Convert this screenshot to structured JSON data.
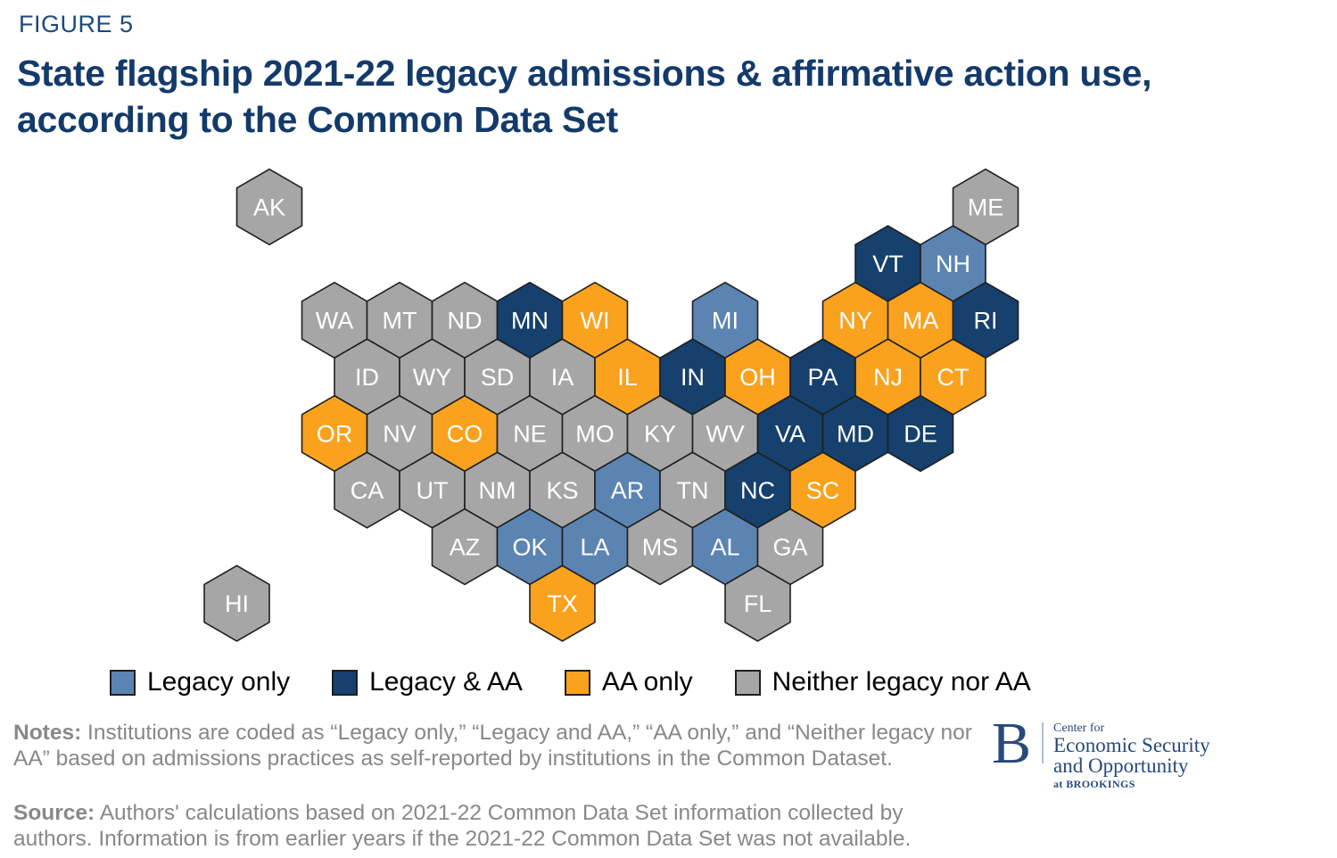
{
  "figure_label": "FIGURE 5",
  "title_line1": "State flagship 2021-22 legacy admissions & affirmative action use,",
  "title_line2": "according to the Common Data Set",
  "notes": {
    "label": "Notes:",
    "text": "Institutions are coded as “Legacy only,” “Legacy and AA,” “AA only,” and “Neither legacy nor AA” based on admissions practices as self-reported by institutions in the Common Dataset."
  },
  "source": {
    "label": "Source:",
    "text": "Authors' calculations based on 2021-22 Common Data Set information collected by authors. Information is from earlier years if the 2021-22 Common Data Set was not available."
  },
  "logo": {
    "b_mark": "B",
    "line1": "Center for",
    "line2": "Economic Security",
    "line3": "and Opportunity",
    "line4": "at BROOKINGS"
  },
  "colors": {
    "figure_label": "#1B4A7E",
    "title": "#133A6A",
    "body_text": "#888888",
    "logo": "#27497B",
    "hex_border": "#1f1f1f",
    "state_label": "#FFFFFF"
  },
  "chart_data": {
    "type": "hexmap",
    "title": "State flagship 2021-22 legacy admissions & affirmative action use, according to the Common Data Set",
    "legend_position": "bottom",
    "categories": [
      {
        "id": "legacy_only",
        "label": "Legacy only",
        "color": "#5B84B2"
      },
      {
        "id": "legacy_aa",
        "label": "Legacy & AA",
        "color": "#16406D"
      },
      {
        "id": "aa_only",
        "label": "AA only",
        "color": "#FAA21E"
      },
      {
        "id": "neither",
        "label": "Neither legacy nor AA",
        "color": "#A6A6A6"
      }
    ],
    "states": [
      {
        "code": "AK",
        "category": "neither",
        "row": 0,
        "col": 0
      },
      {
        "code": "ME",
        "category": "neither",
        "row": 0,
        "col": 11
      },
      {
        "code": "VT",
        "category": "legacy_aa",
        "row": 1,
        "col": 10
      },
      {
        "code": "NH",
        "category": "legacy_only",
        "row": 1,
        "col": 11
      },
      {
        "code": "WA",
        "category": "neither",
        "row": 2,
        "col": 1
      },
      {
        "code": "MT",
        "category": "neither",
        "row": 2,
        "col": 2
      },
      {
        "code": "ND",
        "category": "neither",
        "row": 2,
        "col": 3
      },
      {
        "code": "MN",
        "category": "legacy_aa",
        "row": 2,
        "col": 4
      },
      {
        "code": "WI",
        "category": "aa_only",
        "row": 2,
        "col": 5
      },
      {
        "code": "MI",
        "category": "legacy_only",
        "row": 2,
        "col": 7
      },
      {
        "code": "NY",
        "category": "aa_only",
        "row": 2,
        "col": 9
      },
      {
        "code": "MA",
        "category": "aa_only",
        "row": 2,
        "col": 10
      },
      {
        "code": "RI",
        "category": "legacy_aa",
        "row": 2,
        "col": 11
      },
      {
        "code": "ID",
        "category": "neither",
        "row": 3,
        "col": 2
      },
      {
        "code": "WY",
        "category": "neither",
        "row": 3,
        "col": 3
      },
      {
        "code": "SD",
        "category": "neither",
        "row": 3,
        "col": 4
      },
      {
        "code": "IA",
        "category": "neither",
        "row": 3,
        "col": 5
      },
      {
        "code": "IL",
        "category": "aa_only",
        "row": 3,
        "col": 6
      },
      {
        "code": "IN",
        "category": "legacy_aa",
        "row": 3,
        "col": 7
      },
      {
        "code": "OH",
        "category": "aa_only",
        "row": 3,
        "col": 8
      },
      {
        "code": "PA",
        "category": "legacy_aa",
        "row": 3,
        "col": 9
      },
      {
        "code": "NJ",
        "category": "aa_only",
        "row": 3,
        "col": 10
      },
      {
        "code": "CT",
        "category": "aa_only",
        "row": 3,
        "col": 11
      },
      {
        "code": "OR",
        "category": "aa_only",
        "row": 4,
        "col": 1
      },
      {
        "code": "NV",
        "category": "neither",
        "row": 4,
        "col": 2
      },
      {
        "code": "CO",
        "category": "aa_only",
        "row": 4,
        "col": 3
      },
      {
        "code": "NE",
        "category": "neither",
        "row": 4,
        "col": 4
      },
      {
        "code": "MO",
        "category": "neither",
        "row": 4,
        "col": 5
      },
      {
        "code": "KY",
        "category": "neither",
        "row": 4,
        "col": 6
      },
      {
        "code": "WV",
        "category": "neither",
        "row": 4,
        "col": 7
      },
      {
        "code": "VA",
        "category": "legacy_aa",
        "row": 4,
        "col": 8
      },
      {
        "code": "MD",
        "category": "legacy_aa",
        "row": 4,
        "col": 9
      },
      {
        "code": "DE",
        "category": "legacy_aa",
        "row": 4,
        "col": 10
      },
      {
        "code": "CA",
        "category": "neither",
        "row": 5,
        "col": 2
      },
      {
        "code": "UT",
        "category": "neither",
        "row": 5,
        "col": 3
      },
      {
        "code": "NM",
        "category": "neither",
        "row": 5,
        "col": 4
      },
      {
        "code": "KS",
        "category": "neither",
        "row": 5,
        "col": 5
      },
      {
        "code": "AR",
        "category": "legacy_only",
        "row": 5,
        "col": 6
      },
      {
        "code": "TN",
        "category": "neither",
        "row": 5,
        "col": 7
      },
      {
        "code": "NC",
        "category": "legacy_aa",
        "row": 5,
        "col": 8
      },
      {
        "code": "SC",
        "category": "aa_only",
        "row": 5,
        "col": 9
      },
      {
        "code": "AZ",
        "category": "neither",
        "row": 6,
        "col": 3
      },
      {
        "code": "OK",
        "category": "legacy_only",
        "row": 6,
        "col": 4
      },
      {
        "code": "LA",
        "category": "legacy_only",
        "row": 6,
        "col": 5
      },
      {
        "code": "MS",
        "category": "neither",
        "row": 6,
        "col": 6
      },
      {
        "code": "AL",
        "category": "legacy_only",
        "row": 6,
        "col": 7
      },
      {
        "code": "GA",
        "category": "neither",
        "row": 6,
        "col": 8
      },
      {
        "code": "HI",
        "category": "neither",
        "row": 7,
        "col": 0
      },
      {
        "code": "TX",
        "category": "aa_only",
        "row": 7,
        "col": 5
      },
      {
        "code": "FL",
        "category": "neither",
        "row": 7,
        "col": 8
      }
    ]
  }
}
